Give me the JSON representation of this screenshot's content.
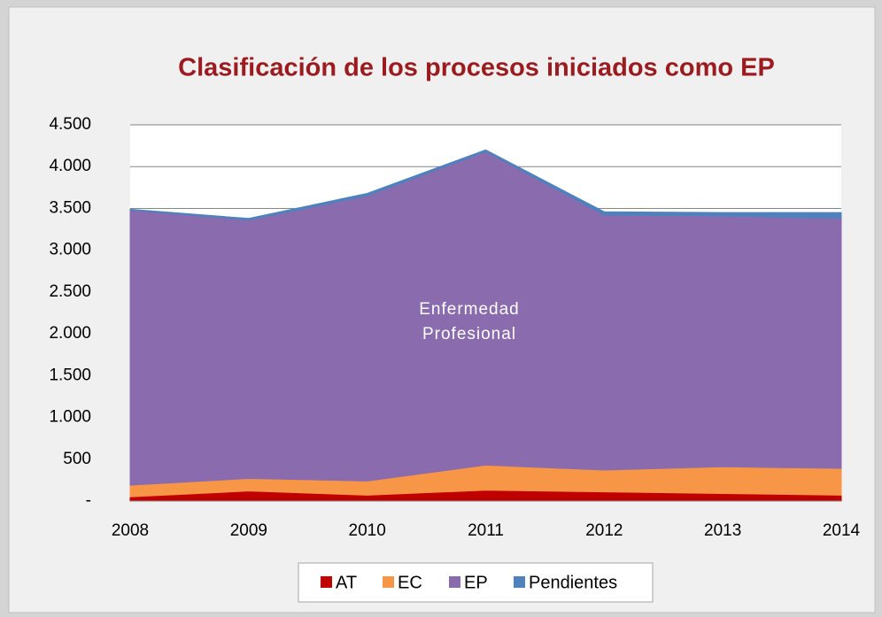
{
  "chart_data": {
    "type": "stacked_area",
    "title": "Clasificación de los procesos iniciados como EP",
    "annotation": "Enfermedad Profesional",
    "categories": [
      "2008",
      "2009",
      "2010",
      "2011",
      "2012",
      "2013",
      "2014"
    ],
    "series": [
      {
        "name": "AT",
        "color": "#c00000",
        "values": [
          50,
          120,
          70,
          130,
          110,
          90,
          70
        ]
      },
      {
        "name": "EC",
        "color": "#f79646",
        "values": [
          140,
          150,
          170,
          300,
          260,
          320,
          320
        ]
      },
      {
        "name": "EP",
        "color": "#8a6cae",
        "values": [
          3290,
          3090,
          3410,
          3750,
          3050,
          3000,
          2990
        ]
      },
      {
        "name": "Pendientes",
        "color": "#4f81bd",
        "values": [
          10,
          20,
          30,
          20,
          40,
          40,
          70
        ]
      }
    ],
    "ylim": [
      0,
      4500
    ],
    "yticks": [
      {
        "value": 0,
        "label": "-"
      },
      500,
      {
        "value": 1000,
        "label": "1.000"
      },
      {
        "value": 1500,
        "label": "1.500"
      },
      {
        "value": 2000,
        "label": "2.000"
      },
      {
        "value": 2500,
        "label": "2.500"
      },
      {
        "value": 3000,
        "label": "3.000"
      },
      {
        "value": 3500,
        "label": "3.500"
      },
      {
        "value": 4000,
        "label": "4.000"
      },
      {
        "value": 4500,
        "label": "4.500"
      }
    ],
    "grid": true,
    "legend": "bottom"
  }
}
